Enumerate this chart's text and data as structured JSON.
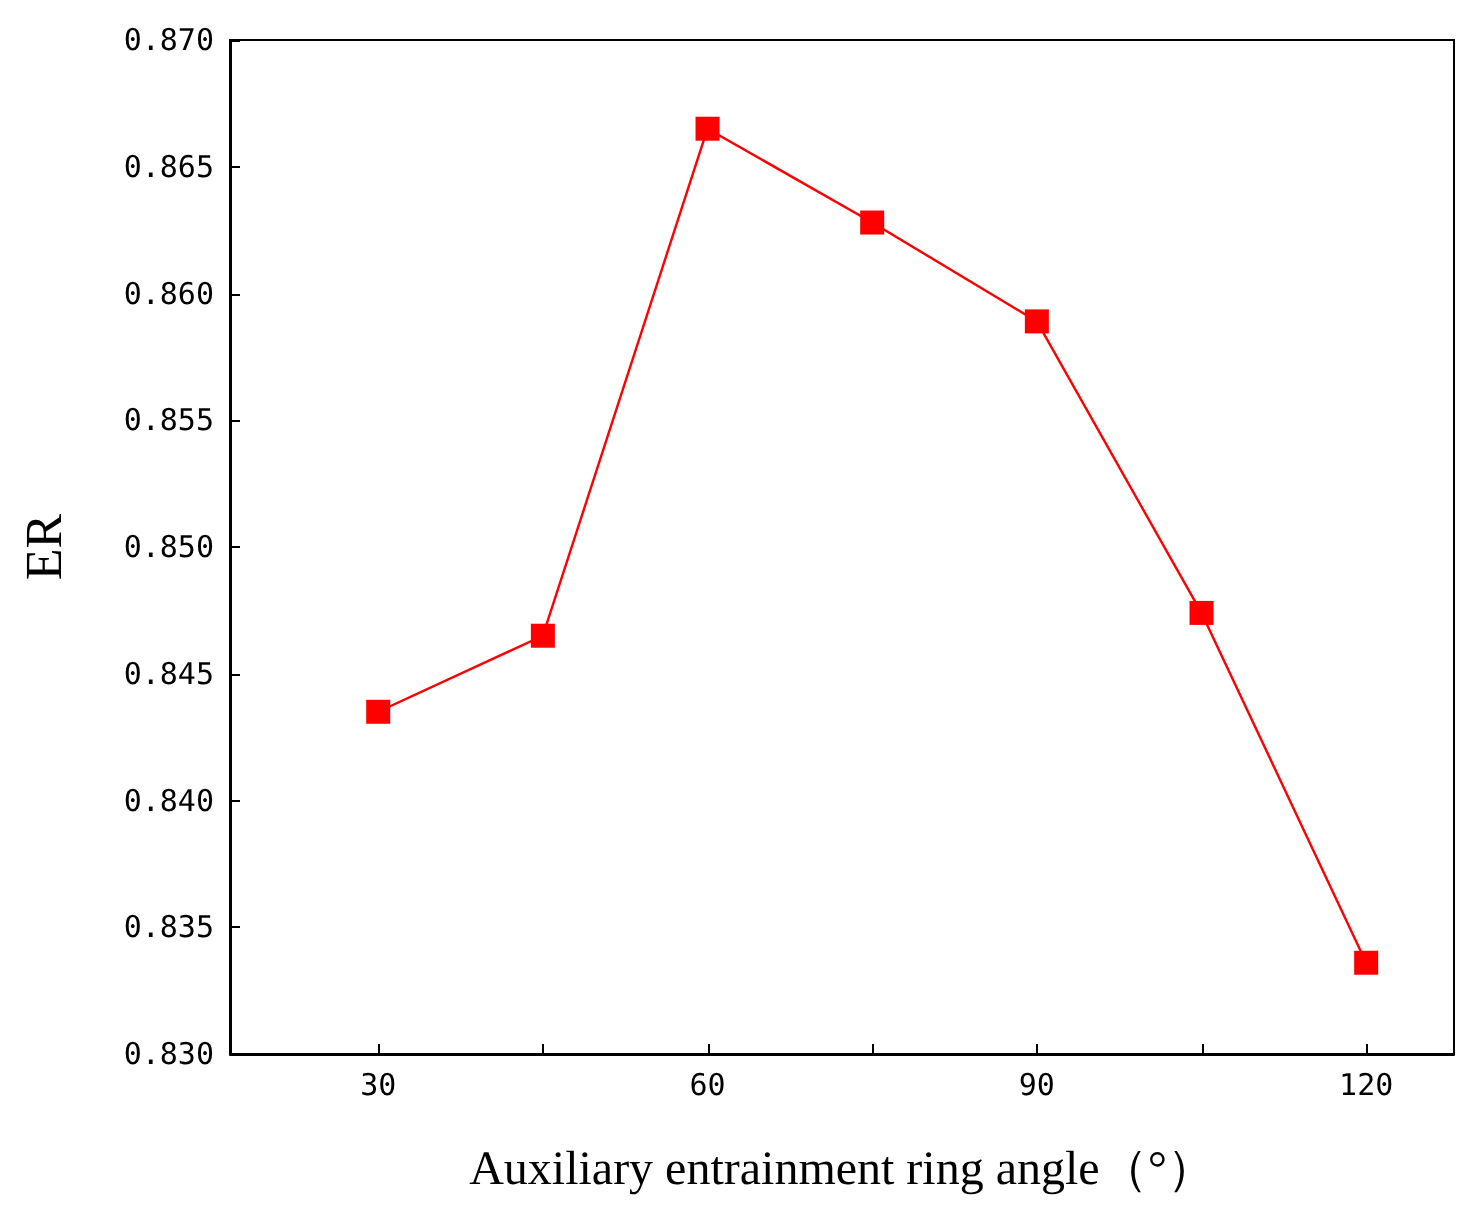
{
  "chart_data": {
    "type": "line",
    "xlabel": "Auxiliary entrainment ring angle（°）",
    "ylabel": "ER",
    "x": [
      30,
      45,
      60,
      75,
      90,
      105,
      120
    ],
    "series": [
      {
        "color": "#ff0000",
        "values": [
          0.8435,
          0.8465,
          0.8665,
          0.8628,
          0.8589,
          0.8474,
          0.8336
        ]
      }
    ],
    "xlim": [
      16.5,
      128
    ],
    "xticks": [
      30,
      {
        "value": 45,
        "label": null
      },
      60,
      {
        "value": 75,
        "label": null
      },
      90,
      {
        "value": 105,
        "label": null
      },
      120
    ],
    "ylim": [
      0.83,
      0.87
    ],
    "yticks": [
      {
        "value": 0.83,
        "label": "0.830"
      },
      {
        "value": 0.835,
        "label": "0.835"
      },
      {
        "value": 0.84,
        "label": "0.840"
      },
      {
        "value": 0.845,
        "label": "0.845"
      },
      {
        "value": 0.85,
        "label": "0.850"
      },
      {
        "value": 0.855,
        "label": "0.855"
      },
      {
        "value": 0.86,
        "label": "0.860"
      },
      {
        "value": 0.865,
        "label": "0.865"
      },
      {
        "value": 0.87,
        "label": "0.870"
      }
    ],
    "marker": "square",
    "line_style": "solid",
    "grid": false
  }
}
